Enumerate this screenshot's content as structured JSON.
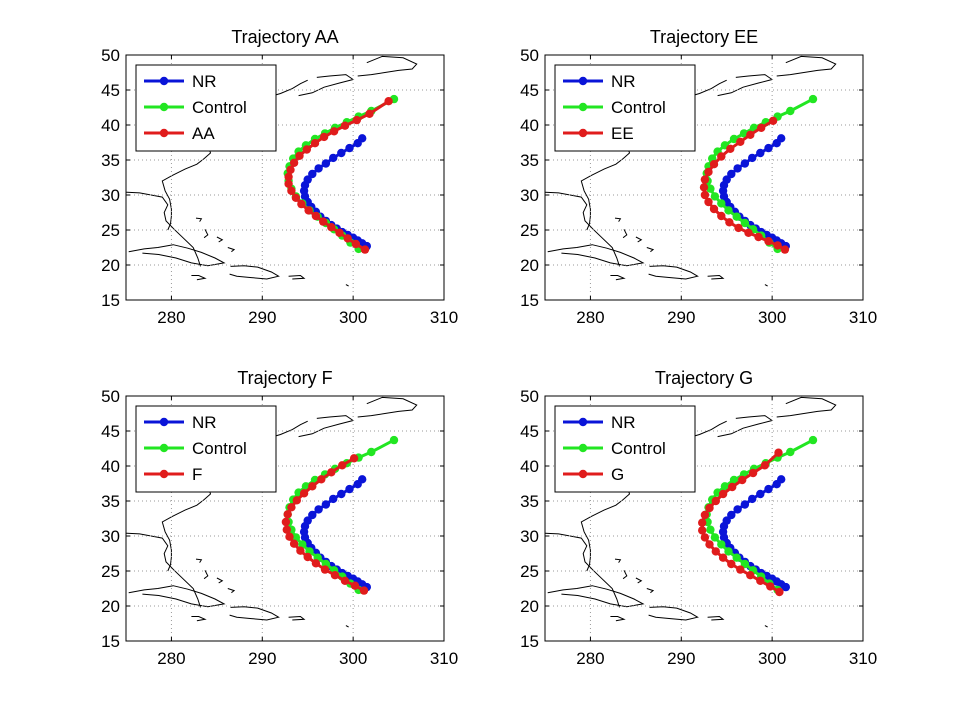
{
  "figure": {
    "colors": {
      "NR": "#0a14d8",
      "Control": "#22e622",
      "experiment": "#e01c1c",
      "coast": "#000000",
      "grid": "#9a9a9a"
    },
    "coastline_note_as_decorative": "coast-outline"
  },
  "chart_data": [
    {
      "type": "line",
      "title": "Trajectory AA",
      "xlabel": "",
      "ylabel": "",
      "xlim": [
        275,
        310
      ],
      "ylim": [
        15,
        50
      ],
      "xticks": [
        280,
        290,
        300,
        310
      ],
      "yticks": [
        15,
        20,
        25,
        30,
        35,
        40,
        45,
        50
      ],
      "grid": true,
      "legend": "top-left",
      "series": [
        {
          "name": "NR",
          "color": "#0a14d8",
          "x": [
            301.5,
            301.0,
            300.5,
            300.0,
            299.4,
            298.8,
            298.2,
            297.6,
            297.0,
            296.4,
            295.9,
            295.4,
            295.0,
            294.7,
            294.6,
            294.7,
            295.0,
            295.5,
            296.2,
            297.0,
            297.8,
            298.7,
            299.6,
            300.5,
            301.0
          ],
          "y": [
            22.7,
            23.1,
            23.5,
            23.9,
            24.3,
            24.7,
            25.2,
            25.7,
            26.3,
            26.9,
            27.6,
            28.3,
            29.0,
            29.8,
            30.6,
            31.4,
            32.2,
            33.0,
            33.8,
            34.5,
            35.3,
            36.0,
            36.7,
            37.4,
            38.1
          ]
        },
        {
          "name": "Control",
          "color": "#22e622",
          "x": [
            300.6,
            299.7,
            298.8,
            297.9,
            297.0,
            296.1,
            295.2,
            294.4,
            293.7,
            293.2,
            292.9,
            292.8,
            293.0,
            293.4,
            294.0,
            294.8,
            295.8,
            296.9,
            298.0,
            299.3,
            300.6,
            302.0,
            304.5
          ],
          "y": [
            22.3,
            23.2,
            24.2,
            25.1,
            26.0,
            26.9,
            27.8,
            28.8,
            29.8,
            30.9,
            32.0,
            33.1,
            34.1,
            35.2,
            36.2,
            37.1,
            38.0,
            38.8,
            39.6,
            40.4,
            41.2,
            42.0,
            43.7
          ]
        },
        {
          "name": "AA",
          "color": "#e01c1c",
          "x": [
            301.3,
            300.3,
            299.4,
            298.5,
            297.6,
            296.7,
            295.9,
            295.1,
            294.3,
            293.7,
            293.2,
            292.9,
            292.9,
            293.1,
            293.5,
            294.1,
            294.9,
            295.8,
            296.8,
            297.9,
            299.1,
            300.4,
            301.8,
            303.9
          ],
          "y": [
            22.2,
            23.0,
            23.8,
            24.6,
            25.4,
            26.2,
            27.0,
            27.8,
            28.7,
            29.6,
            30.6,
            31.6,
            32.6,
            33.6,
            34.6,
            35.6,
            36.5,
            37.4,
            38.3,
            39.1,
            39.9,
            40.7,
            41.6,
            43.4
          ]
        }
      ]
    },
    {
      "type": "line",
      "title": "Trajectory EE",
      "xlabel": "",
      "ylabel": "",
      "xlim": [
        275,
        310
      ],
      "ylim": [
        15,
        50
      ],
      "xticks": [
        280,
        290,
        300,
        310
      ],
      "yticks": [
        15,
        20,
        25,
        30,
        35,
        40,
        45,
        50
      ],
      "grid": true,
      "legend": "top-left",
      "series": [
        {
          "name": "NR",
          "color": "#0a14d8",
          "x": [
            301.5,
            301.0,
            300.5,
            300.0,
            299.4,
            298.8,
            298.2,
            297.6,
            297.0,
            296.4,
            295.9,
            295.4,
            295.0,
            294.7,
            294.6,
            294.7,
            295.0,
            295.5,
            296.2,
            297.0,
            297.8,
            298.7,
            299.6,
            300.5,
            301.0
          ],
          "y": [
            22.7,
            23.1,
            23.5,
            23.9,
            24.3,
            24.7,
            25.2,
            25.7,
            26.3,
            26.9,
            27.6,
            28.3,
            29.0,
            29.8,
            30.6,
            31.4,
            32.2,
            33.0,
            33.8,
            34.5,
            35.3,
            36.0,
            36.7,
            37.4,
            38.1
          ]
        },
        {
          "name": "Control",
          "color": "#22e622",
          "x": [
            300.6,
            299.7,
            298.8,
            297.9,
            297.0,
            296.1,
            295.2,
            294.4,
            293.7,
            293.2,
            292.9,
            292.8,
            293.0,
            293.4,
            294.0,
            294.8,
            295.8,
            296.9,
            298.0,
            299.3,
            300.6,
            302.0,
            304.5
          ],
          "y": [
            22.3,
            23.2,
            24.2,
            25.1,
            26.0,
            26.9,
            27.8,
            28.8,
            29.8,
            30.9,
            32.0,
            33.1,
            34.1,
            35.2,
            36.2,
            37.1,
            38.0,
            38.8,
            39.6,
            40.4,
            41.2,
            42.0,
            43.7
          ]
        },
        {
          "name": "EE",
          "color": "#e01c1c",
          "x": [
            301.4,
            300.6,
            299.6,
            298.5,
            297.4,
            296.3,
            295.3,
            294.4,
            293.6,
            293.0,
            292.6,
            292.5,
            292.6,
            293.0,
            293.6,
            294.4,
            295.4,
            296.5,
            297.6,
            298.8,
            300.1
          ],
          "y": [
            22.2,
            22.8,
            23.4,
            24.0,
            24.6,
            25.3,
            26.1,
            27.0,
            28.0,
            29.0,
            30.0,
            31.1,
            32.2,
            33.3,
            34.4,
            35.5,
            36.6,
            37.6,
            38.6,
            39.6,
            40.6
          ]
        }
      ]
    },
    {
      "type": "line",
      "title": "Trajectory F",
      "xlabel": "",
      "ylabel": "",
      "xlim": [
        275,
        310
      ],
      "ylim": [
        15,
        50
      ],
      "xticks": [
        280,
        290,
        300,
        310
      ],
      "yticks": [
        15,
        20,
        25,
        30,
        35,
        40,
        45,
        50
      ],
      "grid": true,
      "legend": "top-left",
      "series": [
        {
          "name": "NR",
          "color": "#0a14d8",
          "x": [
            301.5,
            301.0,
            300.5,
            300.0,
            299.4,
            298.8,
            298.2,
            297.6,
            297.0,
            296.4,
            295.9,
            295.4,
            295.0,
            294.7,
            294.6,
            294.7,
            295.0,
            295.5,
            296.2,
            297.0,
            297.8,
            298.7,
            299.6,
            300.5,
            301.0
          ],
          "y": [
            22.7,
            23.1,
            23.5,
            23.9,
            24.3,
            24.7,
            25.2,
            25.7,
            26.3,
            26.9,
            27.6,
            28.3,
            29.0,
            29.8,
            30.6,
            31.4,
            32.2,
            33.0,
            33.8,
            34.5,
            35.3,
            36.0,
            36.7,
            37.4,
            38.1
          ]
        },
        {
          "name": "Control",
          "color": "#22e622",
          "x": [
            300.6,
            299.7,
            298.8,
            297.9,
            297.0,
            296.1,
            295.2,
            294.4,
            293.7,
            293.2,
            292.9,
            292.8,
            293.0,
            293.4,
            294.0,
            294.8,
            295.8,
            296.9,
            298.0,
            299.3,
            300.6,
            302.0,
            304.5
          ],
          "y": [
            22.3,
            23.2,
            24.2,
            25.1,
            26.0,
            26.9,
            27.8,
            28.8,
            29.8,
            30.9,
            32.0,
            33.1,
            34.1,
            35.2,
            36.2,
            37.1,
            38.0,
            38.8,
            39.6,
            40.4,
            41.2,
            42.0,
            43.7
          ]
        },
        {
          "name": "F",
          "color": "#e01c1c",
          "x": [
            301.2,
            300.2,
            299.1,
            298.0,
            296.9,
            295.9,
            295.0,
            294.2,
            293.5,
            293.0,
            292.7,
            292.6,
            292.8,
            293.2,
            293.8,
            294.6,
            295.5,
            296.5,
            297.6,
            298.8,
            300.1
          ],
          "y": [
            22.2,
            22.9,
            23.6,
            24.4,
            25.2,
            26.1,
            27.0,
            27.9,
            28.9,
            29.9,
            30.9,
            32.0,
            33.1,
            34.1,
            35.1,
            36.1,
            37.1,
            38.1,
            39.1,
            40.1,
            41.1
          ]
        }
      ]
    },
    {
      "type": "line",
      "title": "Trajectory G",
      "xlabel": "",
      "ylabel": "",
      "xlim": [
        275,
        310
      ],
      "ylim": [
        15,
        50
      ],
      "xticks": [
        280,
        290,
        300,
        310
      ],
      "yticks": [
        15,
        20,
        25,
        30,
        35,
        40,
        45,
        50
      ],
      "grid": true,
      "legend": "top-left",
      "series": [
        {
          "name": "NR",
          "color": "#0a14d8",
          "x": [
            301.5,
            301.0,
            300.5,
            300.0,
            299.4,
            298.8,
            298.2,
            297.6,
            297.0,
            296.4,
            295.9,
            295.4,
            295.0,
            294.7,
            294.6,
            294.7,
            295.0,
            295.5,
            296.2,
            297.0,
            297.8,
            298.7,
            299.6,
            300.5,
            301.0
          ],
          "y": [
            22.7,
            23.1,
            23.5,
            23.9,
            24.3,
            24.7,
            25.2,
            25.7,
            26.3,
            26.9,
            27.6,
            28.3,
            29.0,
            29.8,
            30.6,
            31.4,
            32.2,
            33.0,
            33.8,
            34.5,
            35.3,
            36.0,
            36.7,
            37.4,
            38.1
          ]
        },
        {
          "name": "Control",
          "color": "#22e622",
          "x": [
            300.6,
            299.7,
            298.8,
            297.9,
            297.0,
            296.1,
            295.2,
            294.4,
            293.7,
            293.2,
            292.9,
            292.8,
            293.0,
            293.4,
            294.0,
            294.8,
            295.8,
            296.9,
            298.0,
            299.3,
            300.6,
            302.0,
            304.5
          ],
          "y": [
            22.3,
            23.2,
            24.2,
            25.1,
            26.0,
            26.9,
            27.8,
            28.8,
            29.8,
            30.9,
            32.0,
            33.1,
            34.1,
            35.2,
            36.2,
            37.1,
            38.0,
            38.8,
            39.6,
            40.4,
            41.2,
            42.0,
            43.7
          ]
        },
        {
          "name": "G",
          "color": "#e01c1c",
          "x": [
            300.8,
            299.8,
            298.7,
            297.6,
            296.5,
            295.5,
            294.6,
            293.8,
            293.1,
            292.6,
            292.3,
            292.3,
            292.6,
            293.1,
            293.8,
            294.6,
            295.6,
            296.7,
            297.9,
            299.2,
            300.7
          ],
          "y": [
            22.0,
            22.8,
            23.6,
            24.4,
            25.2,
            26.0,
            26.9,
            27.8,
            28.8,
            29.8,
            30.8,
            31.9,
            33.0,
            34.0,
            35.0,
            36.0,
            37.0,
            38.0,
            39.0,
            40.1,
            41.9
          ]
        }
      ]
    }
  ]
}
